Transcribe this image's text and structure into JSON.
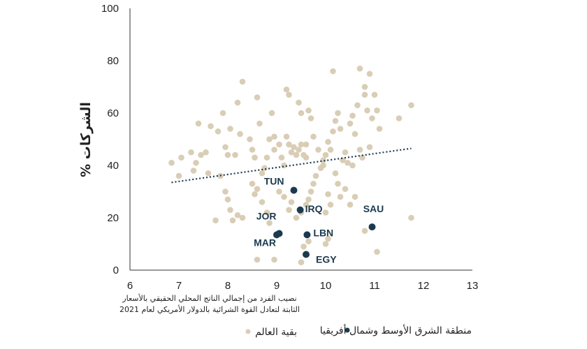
{
  "chart_data": {
    "type": "scatter",
    "ylabel": "% الشركات",
    "xlabel_lines": [
      "نصيب الفرد من إجمالي الناتج المحلي الحقيقي بالأسعار",
      "الثابتة لتعادل القوة الشرائية بالدولار الأمريكي لعام 2021"
    ],
    "xlim": [
      6,
      13
    ],
    "ylim": [
      0,
      100
    ],
    "xticks": [
      6,
      7,
      8,
      9,
      10,
      11,
      12,
      13
    ],
    "yticks": [
      0,
      20,
      40,
      60,
      80,
      100
    ],
    "grid": false,
    "legend": {
      "position": "bottom"
    },
    "colors": {
      "mena": "#1c3a4f",
      "rest": "#d9cdb5",
      "trend": "#1c3a4f"
    },
    "series": [
      {
        "name": "منطقة الشرق الأوسط وشمال أفريقيا",
        "key": "mena",
        "points": [
          {
            "x": 9.35,
            "y": 30.5,
            "label": "TUN"
          },
          {
            "x": 9.48,
            "y": 23.0,
            "label": "IRQ"
          },
          {
            "x": 9.05,
            "y": 14.0,
            "label": "JOR"
          },
          {
            "x": 9.0,
            "y": 13.5,
            "label": "MAR"
          },
          {
            "x": 9.62,
            "y": 13.5,
            "label": "LBN"
          },
          {
            "x": 9.6,
            "y": 6.0,
            "label": "EGY"
          },
          {
            "x": 10.95,
            "y": 16.5,
            "label": "SAU"
          }
        ]
      },
      {
        "name": "بقية العالم",
        "key": "rest",
        "points": [
          [
            6.85,
            41
          ],
          [
            7.05,
            43
          ],
          [
            7.25,
            45
          ],
          [
            7.35,
            41
          ],
          [
            7.3,
            38
          ],
          [
            7.45,
            44
          ],
          [
            7.55,
            45
          ],
          [
            7.6,
            37
          ],
          [
            7.4,
            56
          ],
          [
            7.0,
            36
          ],
          [
            7.65,
            55
          ],
          [
            7.8,
            53
          ],
          [
            7.9,
            60
          ],
          [
            7.95,
            47
          ],
          [
            8.05,
            54
          ],
          [
            8.15,
            44
          ],
          [
            8.2,
            64
          ],
          [
            8.3,
            72
          ],
          [
            8.0,
            44
          ],
          [
            7.95,
            30
          ],
          [
            7.75,
            19
          ],
          [
            8.0,
            27
          ],
          [
            8.05,
            23
          ],
          [
            8.1,
            19
          ],
          [
            8.2,
            21
          ],
          [
            8.3,
            20
          ],
          [
            7.85,
            36
          ],
          [
            8.25,
            52
          ],
          [
            8.45,
            50
          ],
          [
            8.5,
            46
          ],
          [
            8.55,
            43
          ],
          [
            8.6,
            66
          ],
          [
            8.65,
            56
          ],
          [
            8.7,
            37
          ],
          [
            8.75,
            39
          ],
          [
            8.8,
            43
          ],
          [
            8.85,
            50
          ],
          [
            8.95,
            46
          ],
          [
            8.9,
            60
          ],
          [
            8.95,
            51
          ],
          [
            8.5,
            33
          ],
          [
            8.55,
            29
          ],
          [
            8.6,
            31
          ],
          [
            8.7,
            26
          ],
          [
            8.8,
            22
          ],
          [
            8.85,
            18
          ],
          [
            8.6,
            4
          ],
          [
            8.95,
            4
          ],
          [
            9.05,
            48
          ],
          [
            9.1,
            43
          ],
          [
            9.15,
            40
          ],
          [
            9.2,
            51
          ],
          [
            9.25,
            48
          ],
          [
            9.3,
            45
          ],
          [
            9.35,
            47
          ],
          [
            9.4,
            44
          ],
          [
            9.45,
            46
          ],
          [
            9.5,
            48
          ],
          [
            9.55,
            44
          ],
          [
            9.6,
            48
          ],
          [
            9.2,
            69
          ],
          [
            9.25,
            67
          ],
          [
            9.45,
            64
          ],
          [
            9.5,
            60
          ],
          [
            9.65,
            61
          ],
          [
            9.7,
            58
          ],
          [
            9.75,
            51
          ],
          [
            9.05,
            30
          ],
          [
            9.15,
            28
          ],
          [
            9.25,
            23
          ],
          [
            9.3,
            26
          ],
          [
            9.4,
            20
          ],
          [
            9.5,
            22
          ],
          [
            9.6,
            25
          ],
          [
            9.65,
            27
          ],
          [
            9.7,
            30
          ],
          [
            9.75,
            33
          ],
          [
            9.8,
            36
          ],
          [
            9.55,
            9
          ],
          [
            9.65,
            11
          ],
          [
            9.5,
            3
          ],
          [
            9.85,
            46
          ],
          [
            9.9,
            39
          ],
          [
            9.95,
            42
          ],
          [
            10.0,
            44
          ],
          [
            10.05,
            49
          ],
          [
            10.1,
            46
          ],
          [
            10.15,
            53
          ],
          [
            10.2,
            57
          ],
          [
            10.25,
            60
          ],
          [
            10.3,
            54
          ],
          [
            10.35,
            42
          ],
          [
            10.4,
            45
          ],
          [
            10.45,
            41
          ],
          [
            10.15,
            76
          ],
          [
            10.0,
            22
          ],
          [
            10.05,
            29
          ],
          [
            10.1,
            25
          ],
          [
            10.2,
            37
          ],
          [
            10.25,
            33
          ],
          [
            10.3,
            28
          ],
          [
            10.4,
            31
          ],
          [
            10.0,
            10
          ],
          [
            10.05,
            12
          ],
          [
            10.5,
            56
          ],
          [
            10.55,
            59
          ],
          [
            10.6,
            52
          ],
          [
            10.65,
            63
          ],
          [
            10.7,
            46
          ],
          [
            10.75,
            43
          ],
          [
            10.8,
            67
          ],
          [
            10.85,
            61
          ],
          [
            10.9,
            75
          ],
          [
            10.7,
            77
          ],
          [
            10.5,
            25
          ],
          [
            10.6,
            28
          ],
          [
            10.55,
            40
          ],
          [
            10.8,
            70
          ],
          [
            10.95,
            58
          ],
          [
            11.0,
            67
          ],
          [
            11.05,
            61
          ],
          [
            11.1,
            54
          ],
          [
            10.8,
            15
          ],
          [
            11.05,
            7
          ],
          [
            11.5,
            58
          ],
          [
            11.75,
            63
          ],
          [
            11.75,
            20
          ],
          [
            10.9,
            47
          ],
          [
            9.95,
            40
          ],
          [
            9.6,
            43
          ]
        ]
      }
    ],
    "trendline": {
      "series": "بقية العالم",
      "x": [
        6.85,
        11.75
      ],
      "y": [
        33.5,
        46.5
      ]
    }
  }
}
